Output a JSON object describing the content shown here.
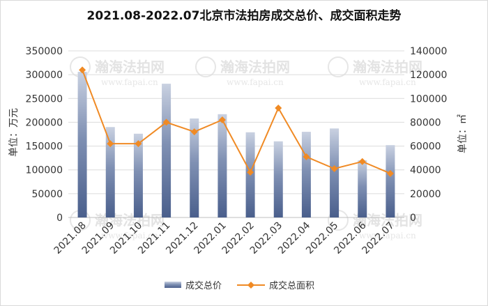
{
  "chart_data": {
    "type": "bar+line",
    "title": "2021.08-2022.07北京市法拍房成交总价、成交面积走势",
    "categories": [
      "2021.08",
      "2021.09",
      "2021.10",
      "2021.11",
      "2021.12",
      "2022.01",
      "2022.02",
      "2022.03",
      "2022.04",
      "2022.05",
      "2022.06",
      "2022.07"
    ],
    "series": [
      {
        "name": "成交总价",
        "type": "bar",
        "axis": "left",
        "color": "#4a5f8c",
        "values": [
          306000,
          190000,
          176000,
          281000,
          208000,
          217000,
          179000,
          160000,
          180000,
          187000,
          120000,
          152000
        ]
      },
      {
        "name": "成交总面积",
        "type": "line",
        "axis": "right",
        "color": "#f08a24",
        "values": [
          124000,
          62000,
          62000,
          80000,
          72000,
          82000,
          38000,
          92000,
          51000,
          41000,
          47000,
          37000
        ]
      }
    ],
    "ylabel_left": "单位：万元",
    "ylabel_right": "单位：㎡",
    "ylim_left": [
      0,
      350000
    ],
    "ylim_right": [
      0,
      140000
    ],
    "yticks_left": [
      "0",
      "50000",
      "100000",
      "150000",
      "200000",
      "250000",
      "300000",
      "350000"
    ],
    "yticks_right": [
      "0",
      "20000",
      "40000",
      "60000",
      "80000",
      "100000",
      "120000",
      "140000"
    ],
    "grid": true,
    "legend_position": "bottom"
  },
  "watermark": {
    "text": "瀚海法拍网",
    "url": "www.fapai.cn"
  }
}
